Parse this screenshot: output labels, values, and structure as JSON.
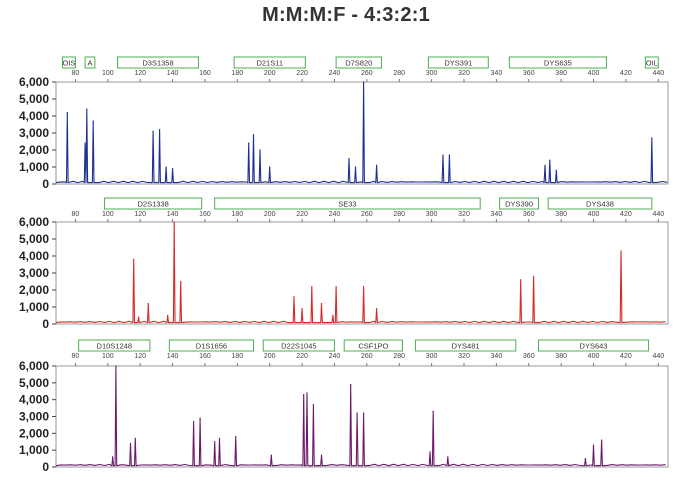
{
  "title": "M:M:M:F - 4:3:2:1",
  "chart_data": [
    {
      "type": "line",
      "panel": "blue",
      "color": "#1f2f8f",
      "x_range": [
        68,
        446
      ],
      "ylim": [
        0,
        6000
      ],
      "yticks": [
        "0",
        "1,000",
        "2,000",
        "3,000",
        "4,000",
        "5,000",
        "6,000"
      ],
      "ytick_values": [
        0,
        1000,
        2000,
        3000,
        4000,
        5000,
        6000
      ],
      "xticks": [
        80,
        100,
        120,
        140,
        160,
        180,
        200,
        220,
        240,
        260,
        280,
        300,
        320,
        340,
        360,
        380,
        400,
        420,
        440
      ],
      "markers": [
        {
          "label": "OIS",
          "x0": 72,
          "x1": 80
        },
        {
          "label": "A",
          "x0": 86,
          "x1": 92
        },
        {
          "label": "D3S1358",
          "x0": 106,
          "x1": 156
        },
        {
          "label": "D21S11",
          "x0": 178,
          "x1": 222
        },
        {
          "label": "D7S820",
          "x0": 241,
          "x1": 269
        },
        {
          "label": "DYS391",
          "x0": 298,
          "x1": 335
        },
        {
          "label": "DYS635",
          "x0": 348,
          "x1": 408
        },
        {
          "label": "OIL",
          "x0": 432,
          "x1": 440
        }
      ],
      "peaks": [
        [
          75,
          4200
        ],
        [
          86,
          2400
        ],
        [
          87,
          4400
        ],
        [
          91,
          3700
        ],
        [
          128,
          3100
        ],
        [
          132,
          3200
        ],
        [
          136,
          1000
        ],
        [
          140,
          900
        ],
        [
          187,
          2400
        ],
        [
          190,
          2900
        ],
        [
          194,
          2000
        ],
        [
          200,
          1000
        ],
        [
          249,
          1500
        ],
        [
          253,
          1000
        ],
        [
          258,
          6000
        ],
        [
          266,
          1100
        ],
        [
          307,
          1700
        ],
        [
          311,
          1700
        ],
        [
          370,
          1100
        ],
        [
          373,
          1400
        ],
        [
          377,
          800
        ],
        [
          436,
          2700
        ]
      ]
    },
    {
      "type": "line",
      "panel": "red",
      "color": "#d42b2b",
      "x_range": [
        68,
        446
      ],
      "ylim": [
        0,
        6000
      ],
      "yticks": [
        "0",
        "1,000",
        "2,000",
        "3,000",
        "4,000",
        "5,000",
        "6,000"
      ],
      "ytick_values": [
        0,
        1000,
        2000,
        3000,
        4000,
        5000,
        6000
      ],
      "xticks": [
        80,
        100,
        120,
        140,
        160,
        180,
        200,
        220,
        240,
        260,
        280,
        300,
        320,
        340,
        360,
        380,
        400,
        420,
        440
      ],
      "markers": [
        {
          "label": "D2S1338",
          "x0": 98,
          "x1": 158
        },
        {
          "label": "SE33",
          "x0": 166,
          "x1": 330
        },
        {
          "label": "DYS390",
          "x0": 342,
          "x1": 366
        },
        {
          "label": "DYS438",
          "x0": 372,
          "x1": 436
        }
      ],
      "peaks": [
        [
          116,
          3800
        ],
        [
          119,
          400
        ],
        [
          125,
          1200
        ],
        [
          137,
          500
        ],
        [
          141,
          6000
        ],
        [
          145,
          2500
        ],
        [
          215,
          1600
        ],
        [
          220,
          900
        ],
        [
          226,
          2200
        ],
        [
          232,
          1200
        ],
        [
          239,
          500
        ],
        [
          241,
          2200
        ],
        [
          258,
          2200
        ],
        [
          266,
          900
        ],
        [
          355,
          2600
        ],
        [
          363,
          2800
        ],
        [
          417,
          4300
        ]
      ]
    },
    {
      "type": "line",
      "panel": "purple",
      "color": "#6b1a6b",
      "x_range": [
        68,
        446
      ],
      "ylim": [
        0,
        6000
      ],
      "yticks": [
        "0",
        "1,000",
        "2,000",
        "3,000",
        "4,000",
        "5,000",
        "6,000"
      ],
      "ytick_values": [
        0,
        1000,
        2000,
        3000,
        4000,
        5000,
        6000
      ],
      "xticks": [
        80,
        100,
        120,
        140,
        160,
        180,
        200,
        220,
        240,
        260,
        280,
        300,
        320,
        340,
        360,
        380,
        400,
        420,
        440
      ],
      "markers": [
        {
          "label": "D10S1248",
          "x0": 82,
          "x1": 126
        },
        {
          "label": "D1S1656",
          "x0": 138,
          "x1": 190
        },
        {
          "label": "D22S1045",
          "x0": 196,
          "x1": 240
        },
        {
          "label": "CSF1PO",
          "x0": 246,
          "x1": 282
        },
        {
          "label": "DYS481",
          "x0": 290,
          "x1": 352
        },
        {
          "label": "DYS643",
          "x0": 366,
          "x1": 434
        }
      ],
      "peaks": [
        [
          103,
          600
        ],
        [
          105,
          6000
        ],
        [
          114,
          1400
        ],
        [
          117,
          1700
        ],
        [
          153,
          2700
        ],
        [
          157,
          2900
        ],
        [
          166,
          1500
        ],
        [
          169,
          1700
        ],
        [
          179,
          1800
        ],
        [
          201,
          700
        ],
        [
          221,
          4300
        ],
        [
          223,
          4400
        ],
        [
          227,
          3700
        ],
        [
          232,
          700
        ],
        [
          250,
          4900
        ],
        [
          254,
          3200
        ],
        [
          258,
          3200
        ],
        [
          299,
          900
        ],
        [
          301,
          3300
        ],
        [
          310,
          600
        ],
        [
          395,
          500
        ],
        [
          400,
          1300
        ],
        [
          405,
          1600
        ]
      ]
    }
  ]
}
